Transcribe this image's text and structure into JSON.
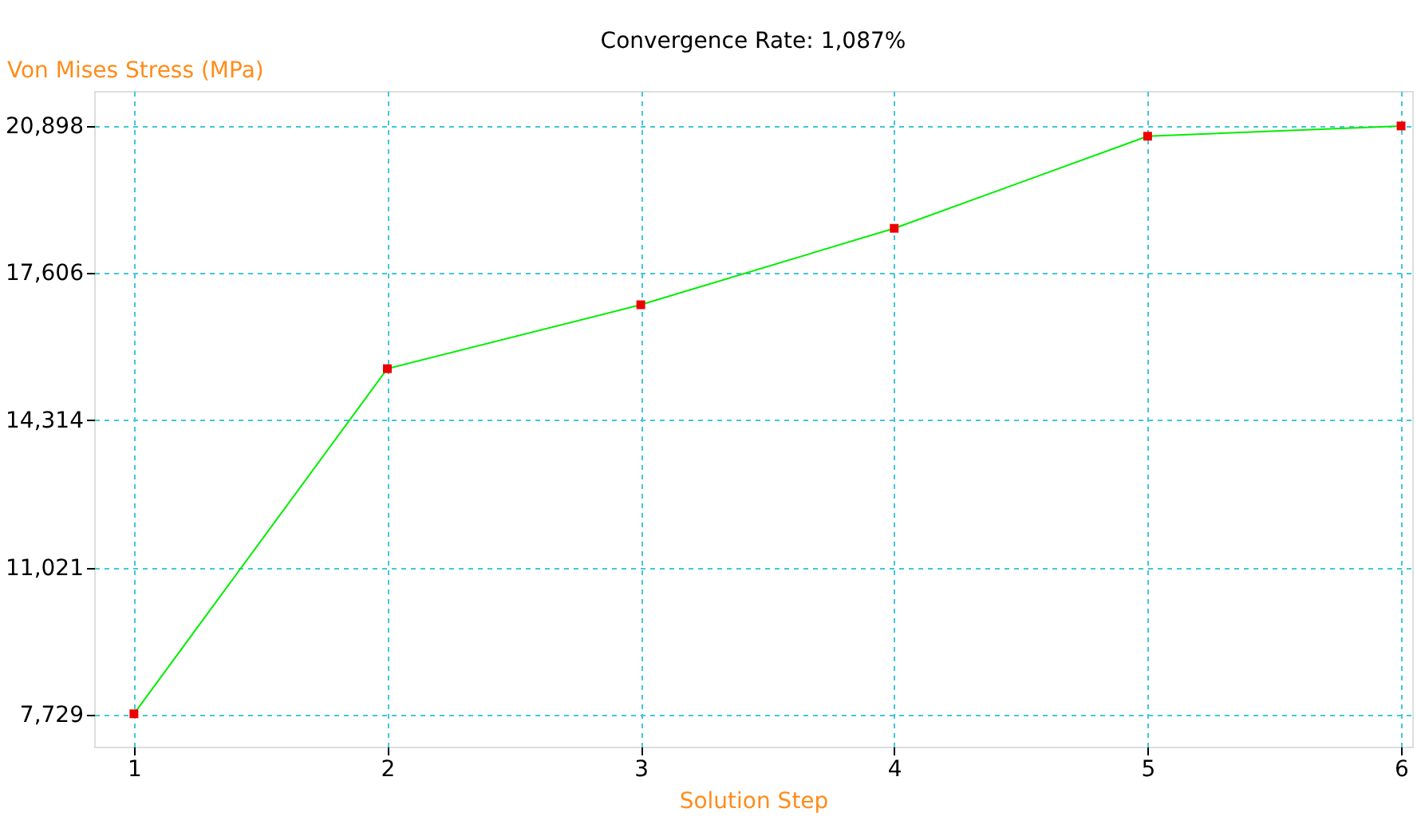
{
  "chart_data": {
    "type": "line",
    "title": "Convergence Rate: 1,087%",
    "xlabel": "Solution Step",
    "ylabel": "Von Mises Stress (MPa)",
    "x": [
      1,
      2,
      3,
      4,
      5,
      6
    ],
    "series": [
      {
        "color": "#00ee00",
        "colors": [
          "#ee0000",
          "#ee0000",
          "#ee0000",
          "#ee0000",
          "#ee0000",
          "#ee0000"
        ],
        "values": [
          7750,
          15470,
          16900,
          18610,
          20670,
          20900
        ]
      }
    ],
    "xlim": [
      0.843,
      6.044
    ],
    "xticks": [
      1,
      2,
      3,
      4,
      5,
      6
    ],
    "ylim": [
      7015,
      21683
    ],
    "yticks": [
      {
        "value": 7729,
        "label": "7,729"
      },
      {
        "value": 11021,
        "label": "11,021"
      },
      {
        "value": 14314,
        "label": "14,314"
      },
      {
        "value": 17606,
        "label": "17,606"
      },
      {
        "value": 20898,
        "label": "20,898"
      }
    ],
    "grid": true,
    "marker": "square",
    "line_style": "solid"
  }
}
